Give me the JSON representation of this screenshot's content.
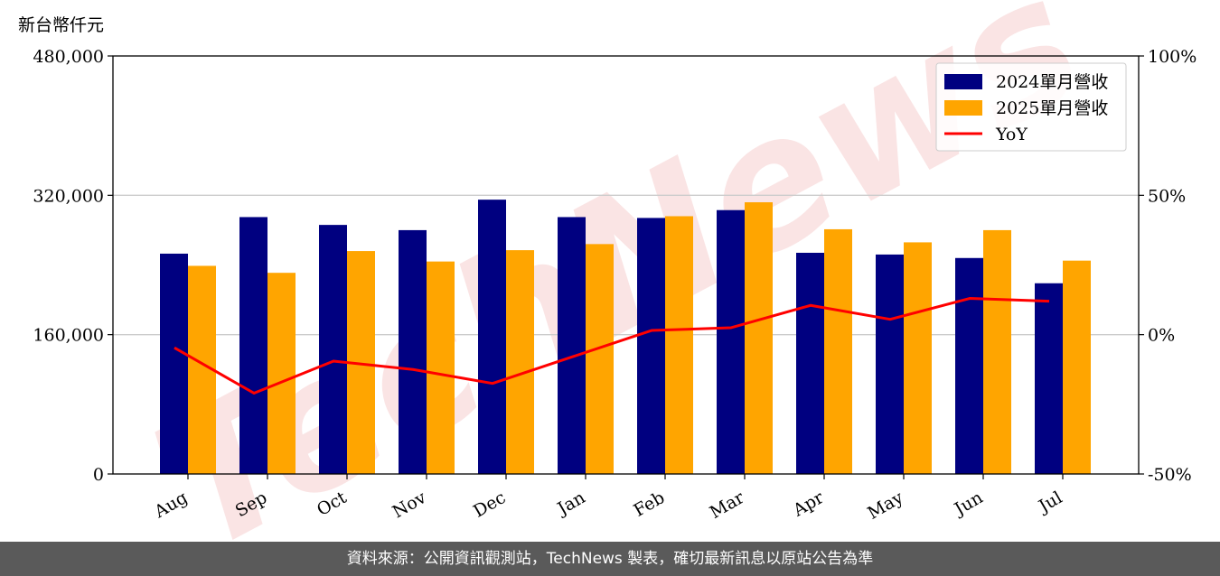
{
  "chart_data": {
    "type": "bar",
    "unit_label": "新台幣仟元",
    "categories": [
      "Aug",
      "Sep",
      "Oct",
      "Nov",
      "Dec",
      "Jan",
      "Feb",
      "Mar",
      "Apr",
      "May",
      "Jun",
      "Jul"
    ],
    "series": [
      {
        "name": "2024單月營收",
        "type": "bar",
        "color": "#000080",
        "values": [
          253000,
          295000,
          286000,
          280000,
          315000,
          295000,
          294000,
          303000,
          254000,
          252000,
          248000,
          219000
        ]
      },
      {
        "name": "2025單月營收",
        "type": "bar",
        "color": "#FFA500",
        "values": [
          239000,
          231000,
          256000,
          244000,
          257000,
          264000,
          296000,
          312000,
          281000,
          266000,
          280000,
          245000
        ]
      },
      {
        "name": "YoY",
        "type": "line",
        "axis": "right",
        "color": "#FF0000",
        "values": [
          -4.7,
          -21.0,
          -9.5,
          -12.5,
          -17.5,
          -8.0,
          1.5,
          2.5,
          10.5,
          5.5,
          13.0,
          12.0
        ]
      }
    ],
    "ylim": [
      0,
      480000
    ],
    "yticks": [
      "0",
      "160,000",
      "320,000",
      "480,000"
    ],
    "y2lim": [
      -50,
      100
    ],
    "y2ticks": [
      "-50%",
      "0%",
      "50%",
      "100%"
    ],
    "grid": "horizontal",
    "legend_position": "top-right",
    "watermark": "TechNews"
  },
  "footer": {
    "source_text": "資料來源：公開資訊觀測站，TechNews 製表，確切最新訊息以原站公告為準"
  }
}
